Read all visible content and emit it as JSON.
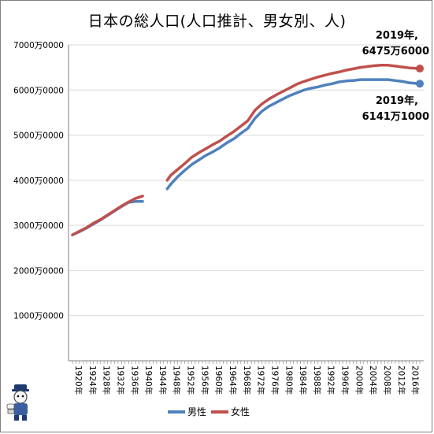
{
  "chart_data": {
    "type": "line",
    "title": "日本の総人口(人口推計、男女別、人)",
    "xlabel": "",
    "ylabel": "",
    "xlim": [
      1920,
      2019
    ],
    "ylim": [
      0,
      70000000
    ],
    "y_ticks": [
      {
        "value": 10000000,
        "label": "1000万0000"
      },
      {
        "value": 20000000,
        "label": "2000万0000"
      },
      {
        "value": 30000000,
        "label": "3000万0000"
      },
      {
        "value": 40000000,
        "label": "4000万0000"
      },
      {
        "value": 50000000,
        "label": "5000万0000"
      },
      {
        "value": 60000000,
        "label": "6000万0000"
      },
      {
        "value": 70000000,
        "label": "7000万0000"
      }
    ],
    "x_tick_labels": [
      {
        "year": 1920,
        "label": "1920年"
      },
      {
        "year": 1924,
        "label": "1924年"
      },
      {
        "year": 1928,
        "label": "1928年"
      },
      {
        "year": 1932,
        "label": "1932年"
      },
      {
        "year": 1936,
        "label": "1936年"
      },
      {
        "year": 1940,
        "label": "1940年"
      },
      {
        "year": 1944,
        "label": "1944年"
      },
      {
        "year": 1948,
        "label": "1948年"
      },
      {
        "year": 1952,
        "label": "1952年"
      },
      {
        "year": 1956,
        "label": "1956年"
      },
      {
        "year": 1960,
        "label": "1960年"
      },
      {
        "year": 1964,
        "label": "1964年"
      },
      {
        "year": 1968,
        "label": "1968年"
      },
      {
        "year": 1972,
        "label": "1972年"
      },
      {
        "year": 1976,
        "label": "1976年"
      },
      {
        "year": 1980,
        "label": "1980年"
      },
      {
        "year": 1984,
        "label": "1984年"
      },
      {
        "year": 1988,
        "label": "1988年"
      },
      {
        "year": 1992,
        "label": "1992年"
      },
      {
        "year": 1996,
        "label": "1996年"
      },
      {
        "year": 2000,
        "label": "2000年"
      },
      {
        "year": 2004,
        "label": "2004年"
      },
      {
        "year": 2008,
        "label": "2008年"
      },
      {
        "year": 2012,
        "label": "2012年"
      },
      {
        "year": 2016,
        "label": "2016年"
      }
    ],
    "grid": "horizontal",
    "legend": "bottom",
    "series": [
      {
        "name": "男性",
        "color": "#4f81bd",
        "segments": [
          {
            "x": [
              1920,
              1922,
              1924,
              1926,
              1928,
              1930,
              1932,
              1934,
              1936,
              1938,
              1940
            ],
            "y": [
              27900000,
              28600000,
              29400000,
              30300000,
              31200000,
              32200000,
              33200000,
              34200000,
              35100000,
              35300000,
              35300000
            ]
          },
          {
            "x": [
              1947,
              1948,
              1950,
              1952,
              1954,
              1956,
              1958,
              1960,
              1962,
              1964,
              1966,
              1968,
              1970,
              1972,
              1974,
              1976,
              1978,
              1980,
              1982,
              1984,
              1986,
              1988,
              1990,
              1992,
              1994,
              1996,
              1998,
              2000,
              2002,
              2004,
              2006,
              2008,
              2010,
              2012,
              2014,
              2016,
              2019
            ],
            "y": [
              38100000,
              39100000,
              40800000,
              42200000,
              43500000,
              44500000,
              45500000,
              46300000,
              47200000,
              48300000,
              49200000,
              50400000,
              51500000,
              53700000,
              55300000,
              56400000,
              57200000,
              58000000,
              58800000,
              59400000,
              60000000,
              60400000,
              60700000,
              61100000,
              61400000,
              61800000,
              62000000,
              62100000,
              62300000,
              62300000,
              62300000,
              62300000,
              62300000,
              62100000,
              61900000,
              61600000,
              61411000
            ]
          }
        ]
      },
      {
        "name": "女性",
        "color": "#c0504d",
        "segments": [
          {
            "x": [
              1920,
              1922,
              1924,
              1926,
              1928,
              1930,
              1932,
              1934,
              1936,
              1938,
              1940
            ],
            "y": [
              27900000,
              28700000,
              29500000,
              30500000,
              31300000,
              32300000,
              33300000,
              34300000,
              35200000,
              36000000,
              36500000
            ]
          },
          {
            "x": [
              1947,
              1948,
              1950,
              1952,
              1954,
              1956,
              1958,
              1960,
              1962,
              1964,
              1966,
              1968,
              1970,
              1972,
              1974,
              1976,
              1978,
              1980,
              1982,
              1984,
              1986,
              1988,
              1990,
              1992,
              1994,
              1996,
              1998,
              2000,
              2002,
              2004,
              2006,
              2008,
              2010,
              2012,
              2014,
              2016,
              2019
            ],
            "y": [
              40000000,
              41100000,
              42400000,
              43700000,
              45100000,
              46100000,
              47000000,
              47900000,
              48700000,
              49800000,
              50800000,
              52000000,
              53200000,
              55500000,
              56900000,
              58000000,
              58900000,
              59700000,
              60500000,
              61300000,
              61900000,
              62400000,
              62900000,
              63300000,
              63700000,
              64000000,
              64400000,
              64700000,
              65000000,
              65200000,
              65400000,
              65500000,
              65500000,
              65300000,
              65100000,
              64900000,
              64756000
            ]
          }
        ]
      }
    ],
    "annotations": [
      {
        "series": "女性",
        "year": 2019,
        "line1": "2019年,",
        "line2": "6475万6000"
      },
      {
        "series": "男性",
        "year": 2019,
        "line1": "2019年,",
        "line2": "6141万1000"
      }
    ]
  }
}
